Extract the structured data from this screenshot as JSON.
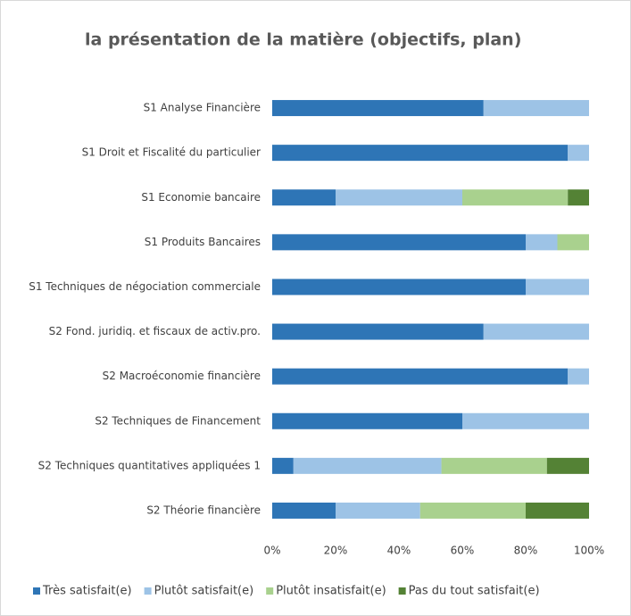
{
  "chart_data": {
    "type": "stacked_barh",
    "title": "la présentation de la matière (objectifs, plan)",
    "categories": [
      "S1 Analyse Financière",
      "S1 Droit et Fiscalité du particulier",
      "S1 Economie bancaire",
      "S1 Produits Bancaires",
      "S1 Techniques de négociation commerciale",
      "S2 Fond. juridiq. et fiscaux de activ.pro.",
      "S2 Macroéconomie financière",
      "S2 Techniques de Financement",
      "S2 Techniques quantitatives appliquées 1",
      "S2 Théorie financière"
    ],
    "series": [
      {
        "name": "Très satisfait(e)",
        "color": "#2e75b6",
        "values": [
          66.7,
          93.3,
          20,
          80,
          80,
          66.7,
          93.3,
          60,
          6.7,
          20
        ]
      },
      {
        "name": "Plutôt satisfait(e)",
        "color": "#9dc3e6",
        "values": [
          33.3,
          6.7,
          40,
          10,
          20,
          33.3,
          6.7,
          40,
          46.7,
          26.7
        ]
      },
      {
        "name": "Plutôt insatisfait(e)",
        "color": "#a9d18e",
        "values": [
          0,
          0,
          33.3,
          10,
          0,
          0,
          0,
          0,
          33.3,
          33.3
        ]
      },
      {
        "name": "Pas du tout satisfait(e)",
        "color": "#548235",
        "values": [
          0,
          0,
          6.7,
          0,
          0,
          0,
          0,
          0,
          13.3,
          20
        ]
      }
    ],
    "xlim": [
      0,
      100
    ],
    "xticks": [
      {
        "value": 0,
        "label": "0%"
      },
      {
        "value": 20,
        "label": "20%"
      },
      {
        "value": 40,
        "label": "40%"
      },
      {
        "value": 60,
        "label": "60%"
      },
      {
        "value": 80,
        "label": "80%"
      },
      {
        "value": 100,
        "label": "100%"
      }
    ],
    "legend": "bottom"
  }
}
